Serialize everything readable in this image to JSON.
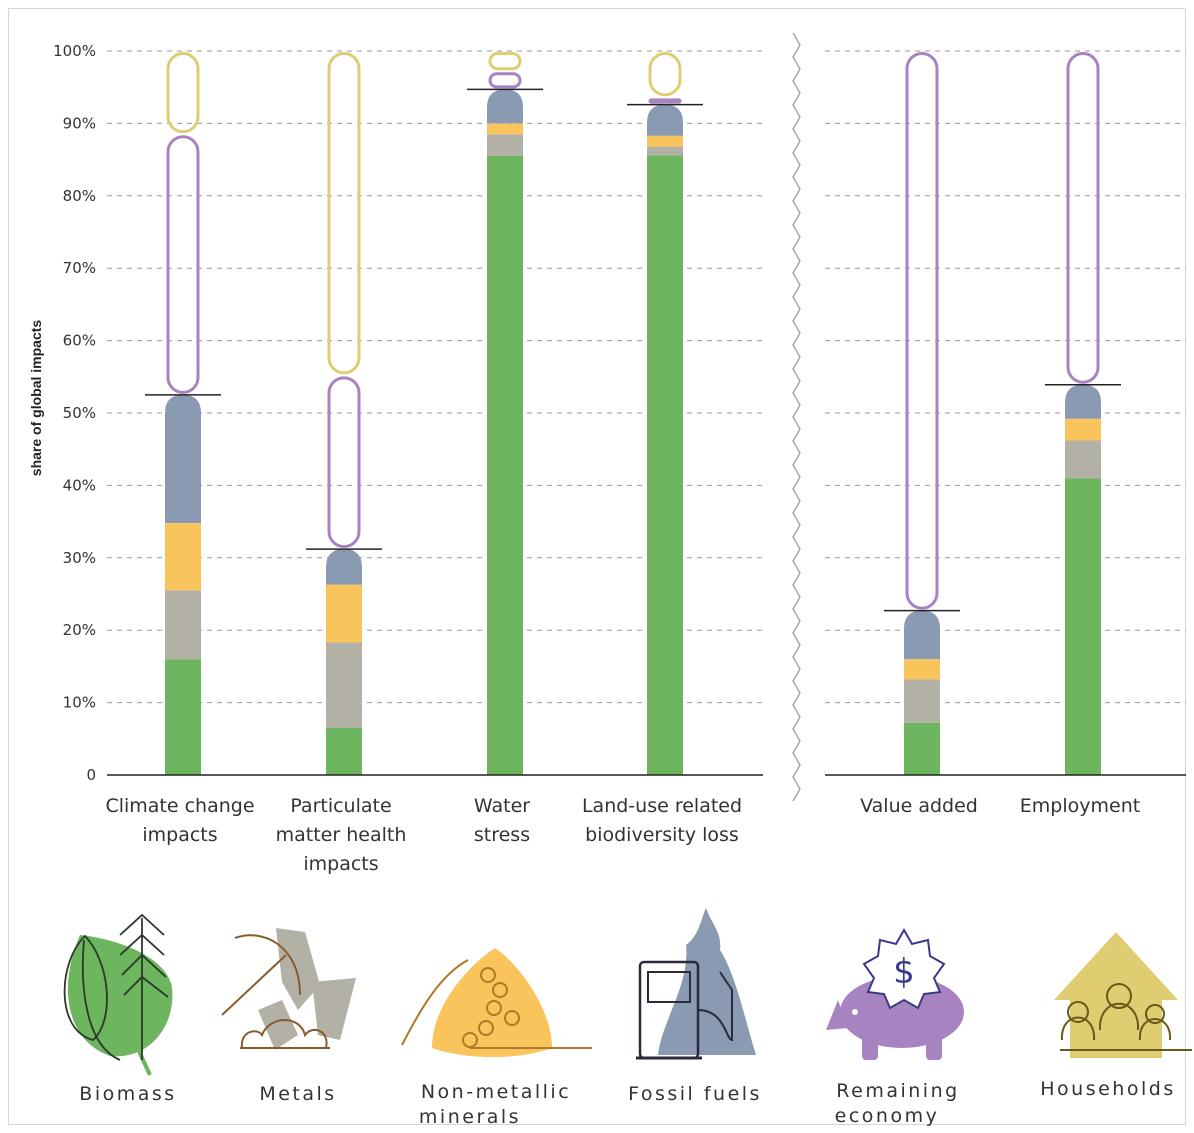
{
  "chart_data": {
    "type": "bar",
    "stacked": true,
    "ylabel": "share of global impacts",
    "ylim": [
      0,
      100
    ],
    "y_ticks": [
      {
        "value": 0,
        "label": "0"
      },
      {
        "value": 10,
        "label": "10%"
      },
      {
        "value": 20,
        "label": "20%"
      },
      {
        "value": 30,
        "label": "30%"
      },
      {
        "value": 40,
        "label": "40%"
      },
      {
        "value": 50,
        "label": "50%"
      },
      {
        "value": 60,
        "label": "60%"
      },
      {
        "value": 70,
        "label": "70%"
      },
      {
        "value": 80,
        "label": "80%"
      },
      {
        "value": 90,
        "label": "90%"
      },
      {
        "value": 100,
        "label": "100%"
      }
    ],
    "grid": "dashed horizontal",
    "groups": [
      {
        "name": "impacts",
        "categories": [
          "Climate change impacts",
          "Particulate matter health impacts",
          "Water stress",
          "Land-use related biodiversity loss"
        ]
      },
      {
        "name": "economy",
        "categories": [
          "Value added",
          "Employment"
        ]
      }
    ],
    "categories": [
      {
        "id": "climate",
        "label_lines": [
          "Climate change",
          "impacts"
        ],
        "resource_extraction_total": 52.5
      },
      {
        "id": "pm",
        "label_lines": [
          "Particulate",
          "matter health",
          "impacts"
        ],
        "resource_extraction_total": 31.2
      },
      {
        "id": "water",
        "label_lines": [
          "Water",
          "stress"
        ],
        "resource_extraction_total": 94.7
      },
      {
        "id": "landuse",
        "label_lines": [
          "Land-use related",
          "biodiversity loss"
        ],
        "resource_extraction_total": 92.6
      },
      {
        "id": "value",
        "label_lines": [
          "Value added"
        ],
        "resource_extraction_total": 22.7
      },
      {
        "id": "employment",
        "label_lines": [
          "Employment"
        ],
        "resource_extraction_total": 53.9
      }
    ],
    "series": [
      {
        "name": "Biomass",
        "color": "#6db55e",
        "style": "filled",
        "values": [
          16.0,
          6.5,
          85.5,
          85.6,
          7.2,
          41.0
        ]
      },
      {
        "name": "Metals",
        "color": "#b3b0a6",
        "style": "filled",
        "values": [
          9.5,
          11.8,
          3.0,
          1.2,
          6.0,
          5.2
        ]
      },
      {
        "name": "Non-metallic minerals",
        "color": "#f9c45c",
        "style": "filled",
        "values": [
          9.3,
          8.0,
          1.5,
          1.5,
          2.8,
          3.0
        ]
      },
      {
        "name": "Fossil fuels",
        "color": "#8a9ab2",
        "style": "filled",
        "values": [
          17.7,
          4.9,
          4.7,
          4.3,
          6.7,
          4.7
        ]
      },
      {
        "name": "Remaining economy",
        "color": "#a883c1",
        "style": "outline",
        "values": [
          36.0,
          24.0,
          2.5,
          1.0,
          77.3,
          46.1
        ]
      },
      {
        "name": "Households",
        "color": "#e0cd72",
        "style": "outline",
        "values": [
          11.5,
          44.8,
          2.8,
          6.4,
          0,
          0
        ]
      }
    ],
    "legend": [
      {
        "name": "Biomass",
        "icon": "biomass-icon"
      },
      {
        "name": "Metals",
        "icon": "metals-icon"
      },
      {
        "name": "Non-metallic minerals",
        "label_lines": [
          "Non-metallic",
          "minerals"
        ],
        "icon": "non-metallic-minerals-icon"
      },
      {
        "name": "Fossil fuels",
        "icon": "fossil-fuels-icon"
      },
      {
        "name": "Remaining economy",
        "label_lines": [
          "Remaining",
          "economy"
        ],
        "icon": "remaining-economy-icon"
      },
      {
        "name": "Households",
        "icon": "households-icon"
      }
    ],
    "legend_placement": "bottom"
  }
}
